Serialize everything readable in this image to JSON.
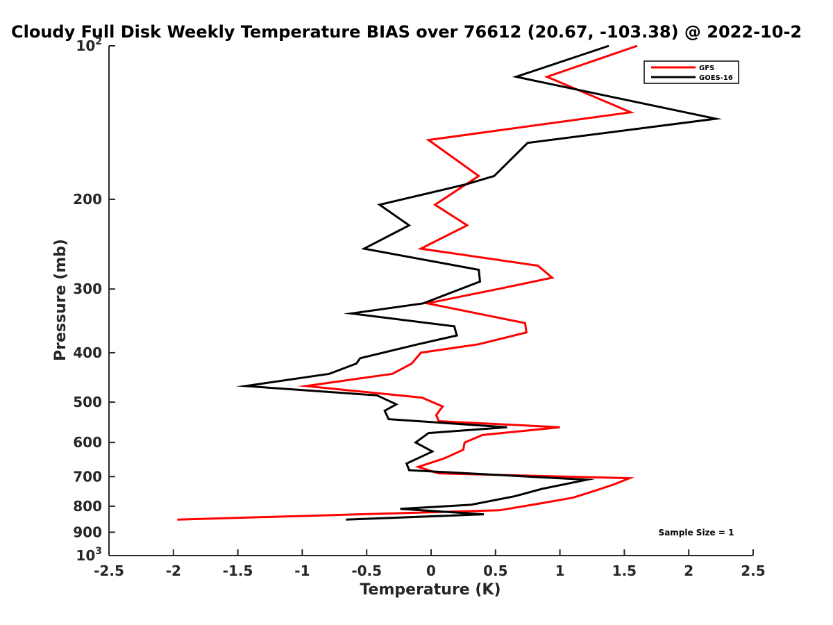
{
  "chart_data": {
    "type": "line",
    "title": "Cloudy Full Disk Weekly Temperature BIAS over 76612 (20.67, -103.38) @ 2022-10-2",
    "xlabel": "Temperature (K)",
    "ylabel": "Pressure (mb)",
    "xlim": [
      -2.5,
      2.5
    ],
    "ylim": [
      1000,
      100
    ],
    "yscale": "log",
    "y_reversed": true,
    "grid": false,
    "legend_position": "top-right",
    "x_ticks": [
      "-2.5",
      "-2",
      "-1.5",
      "-1",
      "-0.5",
      "0",
      "0.5",
      "1",
      "1.5",
      "2",
      "2.5"
    ],
    "y_ticks": [
      {
        "value": 100,
        "base": "10",
        "exp": "2"
      },
      {
        "value": 200,
        "label": "200"
      },
      {
        "value": 300,
        "label": "300"
      },
      {
        "value": 400,
        "label": "400"
      },
      {
        "value": 500,
        "label": "500"
      },
      {
        "value": 600,
        "label": "600"
      },
      {
        "value": 700,
        "label": "700"
      },
      {
        "value": 800,
        "label": "800"
      },
      {
        "value": 900,
        "label": "900"
      },
      {
        "value": 1000,
        "base": "10",
        "exp": "3"
      }
    ],
    "annotation": "Sample Size = 1",
    "series": [
      {
        "name": "GFS",
        "color": "#ff0000",
        "points": [
          [
            1.6,
            100
          ],
          [
            0.9,
            115
          ],
          [
            1.55,
            135
          ],
          [
            -0.02,
            153
          ],
          [
            0.37,
            180
          ],
          [
            0.03,
            205
          ],
          [
            0.28,
            225
          ],
          [
            -0.08,
            250
          ],
          [
            0.83,
            270
          ],
          [
            0.94,
            285
          ],
          [
            0.52,
            300
          ],
          [
            -0.03,
            320
          ],
          [
            0.73,
            350
          ],
          [
            0.74,
            365
          ],
          [
            0.37,
            385
          ],
          [
            -0.08,
            400
          ],
          [
            -0.15,
            420
          ],
          [
            -0.3,
            440
          ],
          [
            -0.97,
            465
          ],
          [
            -0.07,
            490
          ],
          [
            0.09,
            510
          ],
          [
            0.04,
            530
          ],
          [
            0.06,
            545
          ],
          [
            1.0,
            560
          ],
          [
            0.4,
            580
          ],
          [
            0.26,
            600
          ],
          [
            0.25,
            620
          ],
          [
            0.1,
            645
          ],
          [
            -0.1,
            670
          ],
          [
            0.06,
            690
          ],
          [
            1.54,
            705
          ],
          [
            1.42,
            725
          ],
          [
            1.28,
            745
          ],
          [
            1.1,
            770
          ],
          [
            0.85,
            790
          ],
          [
            0.53,
            815
          ],
          [
            -1.97,
            850
          ]
        ]
      },
      {
        "name": "GOES-16",
        "color": "#000000",
        "points": [
          [
            1.38,
            100
          ],
          [
            0.66,
            115
          ],
          [
            2.21,
            139
          ],
          [
            0.75,
            155
          ],
          [
            0.49,
            180
          ],
          [
            0.27,
            187
          ],
          [
            -0.4,
            205
          ],
          [
            -0.17,
            225
          ],
          [
            -0.52,
            250
          ],
          [
            0.37,
            275
          ],
          [
            0.38,
            290
          ],
          [
            -0.06,
            320
          ],
          [
            -0.62,
            335
          ],
          [
            0.18,
            355
          ],
          [
            0.2,
            370
          ],
          [
            -0.1,
            385
          ],
          [
            -0.55,
            410
          ],
          [
            -0.58,
            420
          ],
          [
            -0.79,
            440
          ],
          [
            -1.44,
            465
          ],
          [
            -0.42,
            485
          ],
          [
            -0.27,
            505
          ],
          [
            -0.36,
            520
          ],
          [
            -0.33,
            540
          ],
          [
            0.59,
            560
          ],
          [
            -0.02,
            575
          ],
          [
            -0.12,
            600
          ],
          [
            0.01,
            625
          ],
          [
            -0.19,
            660
          ],
          [
            -0.17,
            680
          ],
          [
            1.21,
            710
          ],
          [
            0.86,
            740
          ],
          [
            0.65,
            765
          ],
          [
            0.31,
            795
          ],
          [
            -0.24,
            810
          ],
          [
            0.41,
            830
          ],
          [
            -0.66,
            850
          ]
        ]
      }
    ]
  }
}
